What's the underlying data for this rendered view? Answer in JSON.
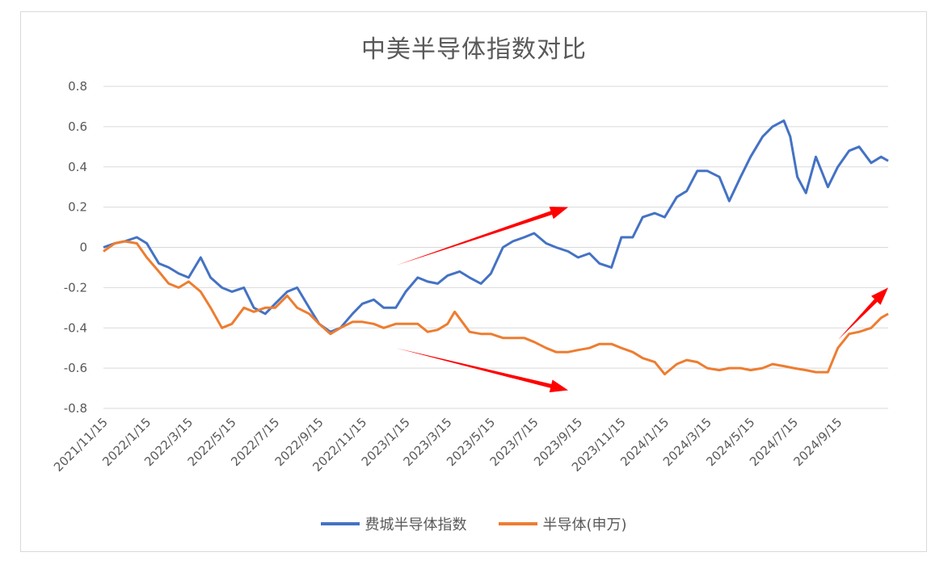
{
  "chart_data": {
    "type": "line",
    "title": "中美半导体指数对比",
    "xlabel": "",
    "ylabel": "",
    "ylim": [
      -0.8,
      0.8
    ],
    "yticks": [
      "0.8",
      "0.6",
      "0.4",
      "0.2",
      "0",
      "-0.2",
      "-0.4",
      "-0.6",
      "-0.8"
    ],
    "xtick_labels": [
      "2021/11/15",
      "2022/1/15",
      "2022/3/15",
      "2022/5/15",
      "2022/7/15",
      "2022/9/15",
      "2022/11/15",
      "2023/1/15",
      "2023/3/15",
      "2023/5/15",
      "2023/7/15",
      "2023/9/15",
      "2023/11/15",
      "2024/1/15",
      "2024/3/15",
      "2024/5/15",
      "2024/7/15",
      "2024/9/15"
    ],
    "grid": true,
    "legend_position": "bottom",
    "series": [
      {
        "name": "费城半导体指数",
        "color": "#4472c4",
        "points": [
          [
            "2021/11/15",
            0.0
          ],
          [
            "2021/12/01",
            0.02
          ],
          [
            "2021/12/15",
            0.03
          ],
          [
            "2022/01/01",
            0.05
          ],
          [
            "2022/01/15",
            0.02
          ],
          [
            "2022/02/01",
            -0.08
          ],
          [
            "2022/02/15",
            -0.1
          ],
          [
            "2022/03/01",
            -0.13
          ],
          [
            "2022/03/15",
            -0.15
          ],
          [
            "2022/04/01",
            -0.05
          ],
          [
            "2022/04/15",
            -0.15
          ],
          [
            "2022/05/01",
            -0.2
          ],
          [
            "2022/05/15",
            -0.22
          ],
          [
            "2022/06/01",
            -0.2
          ],
          [
            "2022/06/15",
            -0.3
          ],
          [
            "2022/07/01",
            -0.33
          ],
          [
            "2022/07/15",
            -0.28
          ],
          [
            "2022/08/01",
            -0.22
          ],
          [
            "2022/08/15",
            -0.2
          ],
          [
            "2022/09/01",
            -0.3
          ],
          [
            "2022/09/15",
            -0.38
          ],
          [
            "2022/10/01",
            -0.42
          ],
          [
            "2022/10/15",
            -0.4
          ],
          [
            "2022/11/01",
            -0.33
          ],
          [
            "2022/11/15",
            -0.28
          ],
          [
            "2022/12/01",
            -0.26
          ],
          [
            "2022/12/15",
            -0.3
          ],
          [
            "2023/01/01",
            -0.3
          ],
          [
            "2023/01/15",
            -0.22
          ],
          [
            "2023/02/01",
            -0.15
          ],
          [
            "2023/02/15",
            -0.17
          ],
          [
            "2023/03/01",
            -0.18
          ],
          [
            "2023/03/15",
            -0.14
          ],
          [
            "2023/04/01",
            -0.12
          ],
          [
            "2023/04/15",
            -0.15
          ],
          [
            "2023/05/01",
            -0.18
          ],
          [
            "2023/05/15",
            -0.13
          ],
          [
            "2023/06/01",
            0.0
          ],
          [
            "2023/06/15",
            0.03
          ],
          [
            "2023/07/01",
            0.05
          ],
          [
            "2023/07/15",
            0.07
          ],
          [
            "2023/08/01",
            0.02
          ],
          [
            "2023/08/15",
            0.0
          ],
          [
            "2023/09/01",
            -0.02
          ],
          [
            "2023/09/15",
            -0.05
          ],
          [
            "2023/10/01",
            -0.03
          ],
          [
            "2023/10/15",
            -0.08
          ],
          [
            "2023/11/01",
            -0.1
          ],
          [
            "2023/11/15",
            0.05
          ],
          [
            "2023/12/01",
            0.05
          ],
          [
            "2023/12/15",
            0.15
          ],
          [
            "2024/01/01",
            0.17
          ],
          [
            "2024/01/15",
            0.15
          ],
          [
            "2024/02/01",
            0.25
          ],
          [
            "2024/02/15",
            0.28
          ],
          [
            "2024/03/01",
            0.38
          ],
          [
            "2024/03/15",
            0.38
          ],
          [
            "2024/04/01",
            0.35
          ],
          [
            "2024/04/15",
            0.23
          ],
          [
            "2024/05/01",
            0.35
          ],
          [
            "2024/05/15",
            0.45
          ],
          [
            "2024/06/01",
            0.55
          ],
          [
            "2024/06/15",
            0.6
          ],
          [
            "2024/07/01",
            0.63
          ],
          [
            "2024/07/10",
            0.55
          ],
          [
            "2024/07/20",
            0.35
          ],
          [
            "2024/08/01",
            0.27
          ],
          [
            "2024/08/15",
            0.45
          ],
          [
            "2024/09/01",
            0.3
          ],
          [
            "2024/09/15",
            0.4
          ],
          [
            "2024/10/01",
            0.48
          ],
          [
            "2024/10/15",
            0.5
          ],
          [
            "2024/11/01",
            0.42
          ],
          [
            "2024/11/15",
            0.45
          ],
          [
            "2024/11/25",
            0.43
          ]
        ]
      },
      {
        "name": "半导体(申万)",
        "color": "#ed7d31",
        "points": [
          [
            "2021/11/15",
            -0.02
          ],
          [
            "2021/12/01",
            0.02
          ],
          [
            "2021/12/15",
            0.03
          ],
          [
            "2022/01/01",
            0.02
          ],
          [
            "2022/01/15",
            -0.05
          ],
          [
            "2022/02/01",
            -0.12
          ],
          [
            "2022/02/15",
            -0.18
          ],
          [
            "2022/03/01",
            -0.2
          ],
          [
            "2022/03/15",
            -0.17
          ],
          [
            "2022/04/01",
            -0.22
          ],
          [
            "2022/04/15",
            -0.3
          ],
          [
            "2022/05/01",
            -0.4
          ],
          [
            "2022/05/15",
            -0.38
          ],
          [
            "2022/06/01",
            -0.3
          ],
          [
            "2022/06/15",
            -0.32
          ],
          [
            "2022/07/01",
            -0.3
          ],
          [
            "2022/07/15",
            -0.3
          ],
          [
            "2022/08/01",
            -0.24
          ],
          [
            "2022/08/15",
            -0.3
          ],
          [
            "2022/09/01",
            -0.33
          ],
          [
            "2022/09/15",
            -0.38
          ],
          [
            "2022/10/01",
            -0.43
          ],
          [
            "2022/10/15",
            -0.4
          ],
          [
            "2022/11/01",
            -0.37
          ],
          [
            "2022/11/15",
            -0.37
          ],
          [
            "2022/12/01",
            -0.38
          ],
          [
            "2022/12/15",
            -0.4
          ],
          [
            "2023/01/01",
            -0.38
          ],
          [
            "2023/01/15",
            -0.38
          ],
          [
            "2023/02/01",
            -0.38
          ],
          [
            "2023/02/15",
            -0.42
          ],
          [
            "2023/03/01",
            -0.41
          ],
          [
            "2023/03/15",
            -0.38
          ],
          [
            "2023/03/25",
            -0.32
          ],
          [
            "2023/04/15",
            -0.42
          ],
          [
            "2023/05/01",
            -0.43
          ],
          [
            "2023/05/15",
            -0.43
          ],
          [
            "2023/06/01",
            -0.45
          ],
          [
            "2023/06/15",
            -0.45
          ],
          [
            "2023/07/01",
            -0.45
          ],
          [
            "2023/07/15",
            -0.47
          ],
          [
            "2023/08/01",
            -0.5
          ],
          [
            "2023/08/15",
            -0.52
          ],
          [
            "2023/09/01",
            -0.52
          ],
          [
            "2023/09/15",
            -0.51
          ],
          [
            "2023/10/01",
            -0.5
          ],
          [
            "2023/10/15",
            -0.48
          ],
          [
            "2023/11/01",
            -0.48
          ],
          [
            "2023/11/15",
            -0.5
          ],
          [
            "2023/12/01",
            -0.52
          ],
          [
            "2023/12/15",
            -0.55
          ],
          [
            "2024/01/01",
            -0.57
          ],
          [
            "2024/01/15",
            -0.63
          ],
          [
            "2024/02/01",
            -0.58
          ],
          [
            "2024/02/15",
            -0.56
          ],
          [
            "2024/03/01",
            -0.57
          ],
          [
            "2024/03/15",
            -0.6
          ],
          [
            "2024/04/01",
            -0.61
          ],
          [
            "2024/04/15",
            -0.6
          ],
          [
            "2024/05/01",
            -0.6
          ],
          [
            "2024/05/15",
            -0.61
          ],
          [
            "2024/06/01",
            -0.6
          ],
          [
            "2024/06/15",
            -0.58
          ],
          [
            "2024/07/01",
            -0.59
          ],
          [
            "2024/07/15",
            -0.6
          ],
          [
            "2024/08/01",
            -0.61
          ],
          [
            "2024/08/15",
            -0.62
          ],
          [
            "2024/09/01",
            -0.62
          ],
          [
            "2024/09/15",
            -0.5
          ],
          [
            "2024/10/01",
            -0.43
          ],
          [
            "2024/10/15",
            -0.42
          ],
          [
            "2024/11/01",
            -0.4
          ],
          [
            "2024/11/15",
            -0.35
          ],
          [
            "2024/11/25",
            -0.33
          ]
        ]
      }
    ],
    "annotations": [
      {
        "type": "arrow",
        "color": "#ff0000",
        "from": [
          "2023/01/01",
          -0.09
        ],
        "to": [
          "2023/09/01",
          0.2
        ]
      },
      {
        "type": "arrow",
        "color": "#ff0000",
        "from": [
          "2023/01/01",
          -0.5
        ],
        "to": [
          "2023/09/01",
          -0.71
        ]
      },
      {
        "type": "arrow",
        "color": "#ff0000",
        "from": [
          "2024/09/15",
          -0.46
        ],
        "to": [
          "2024/11/25",
          -0.2
        ]
      }
    ]
  }
}
